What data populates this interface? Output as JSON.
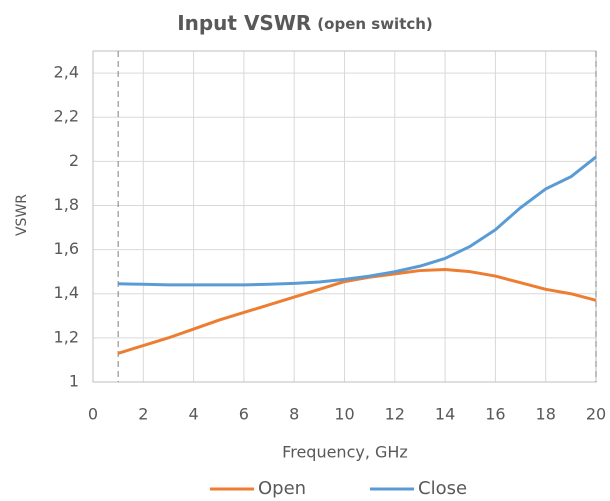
{
  "chart_data": {
    "type": "line",
    "title": "Input VSWR",
    "subtitle": "(open switch)",
    "x_label": "Frequency, GHz",
    "y_label": "VSWR",
    "x": [
      1,
      2,
      3,
      4,
      5,
      6,
      7,
      8,
      9,
      10,
      11,
      12,
      13,
      14,
      15,
      16,
      17,
      18,
      19,
      20
    ],
    "series": [
      {
        "name": "Open",
        "color": "#ed7d31",
        "values": [
          1.13,
          1.165,
          1.2,
          1.24,
          1.28,
          1.315,
          1.35,
          1.385,
          1.42,
          1.455,
          1.475,
          1.49,
          1.505,
          1.51,
          1.5,
          1.48,
          1.45,
          1.42,
          1.4,
          1.37
        ]
      },
      {
        "name": "Close",
        "color": "#5b9bd5",
        "values": [
          1.445,
          1.443,
          1.44,
          1.44,
          1.44,
          1.44,
          1.443,
          1.447,
          1.453,
          1.465,
          1.48,
          1.5,
          1.525,
          1.56,
          1.615,
          1.69,
          1.79,
          1.875,
          1.93,
          2.02
        ]
      }
    ],
    "xlim": [
      0,
      20
    ],
    "xticks": [
      0,
      2,
      4,
      6,
      8,
      10,
      12,
      14,
      16,
      18,
      20
    ],
    "ylim": [
      1,
      2.5
    ],
    "yticks": [
      1,
      {
        "value": 1.2,
        "label": "1,2"
      },
      {
        "value": 1.4,
        "label": "1,4"
      },
      {
        "value": 1.6,
        "label": "1,6"
      },
      {
        "value": 1.8,
        "label": "1,8"
      },
      2,
      {
        "value": 2.2,
        "label": "2,2"
      },
      {
        "value": 2.4,
        "label": "2,4"
      }
    ],
    "vlines": [
      1,
      20
    ],
    "grid": true,
    "legend": "bottom"
  }
}
